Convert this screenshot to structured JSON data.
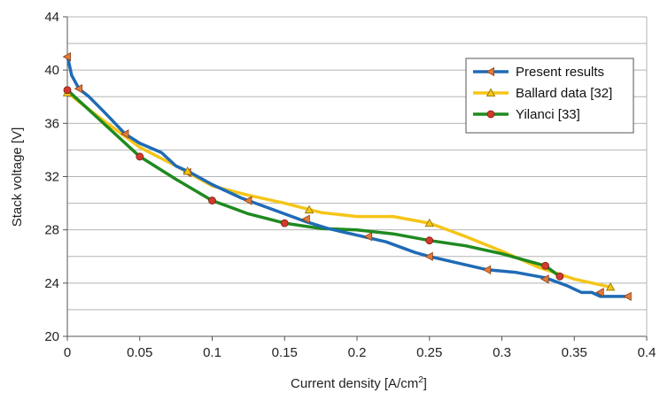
{
  "chart_data": {
    "type": "line",
    "title": "",
    "xlabel": "Current density [A/cm",
    "xlabel_superscript": "2",
    "xlabel_suffix": "]",
    "ylabel": "Stack voltage [V]",
    "xlim": [
      0,
      0.4
    ],
    "ylim": [
      20,
      44
    ],
    "x_ticks": [
      0,
      0.05,
      0.1,
      0.15,
      0.2,
      0.25,
      0.3,
      0.35,
      0.4
    ],
    "x_tick_labels": [
      "0",
      "0.05",
      "0.1",
      "0.15",
      "0.2",
      "0.25",
      "0.3",
      "0.35",
      "0.4"
    ],
    "y_ticks": [
      20,
      24,
      28,
      32,
      36,
      40,
      44
    ],
    "y_tick_labels": [
      "20",
      "24",
      "28",
      "32",
      "36",
      "40",
      "44"
    ],
    "grid": {
      "horizontal": true,
      "vertical": false,
      "step": 2
    },
    "legend_position": "top-right",
    "series": [
      {
        "name": "Present results",
        "color": "#1f6bb5",
        "marker": "left-triangle",
        "marker_color": "#e07b3c",
        "x": [
          0,
          0.001,
          0.003,
          0.005,
          0.008,
          0.015,
          0.025,
          0.04,
          0.05,
          0.065,
          0.075,
          0.085,
          0.1,
          0.12,
          0.15,
          0.165,
          0.18,
          0.2,
          0.22,
          0.24,
          0.25,
          0.27,
          0.29,
          0.31,
          0.33,
          0.345,
          0.355,
          0.362,
          0.368,
          0.375,
          0.387
        ],
        "y": [
          41,
          40.6,
          39.6,
          39.2,
          38.6,
          38,
          36.9,
          35.2,
          34.5,
          33.8,
          32.8,
          32.3,
          31.4,
          30.4,
          29.2,
          28.6,
          28.1,
          27.6,
          27.1,
          26.3,
          26,
          25.5,
          25,
          24.8,
          24.4,
          23.8,
          23.3,
          23.3,
          23,
          23,
          23
        ]
      },
      {
        "name": "Ballard data [32]",
        "color": "#f5c518",
        "marker": "triangle",
        "marker_color": "#f5c518",
        "x": [
          0,
          0.025,
          0.05,
          0.075,
          0.1,
          0.125,
          0.15,
          0.175,
          0.2,
          0.225,
          0.25,
          0.275,
          0.3,
          0.325,
          0.35,
          0.375
        ],
        "y": [
          38.3,
          36.2,
          34.2,
          32.8,
          31.3,
          30.6,
          30,
          29.3,
          29,
          29,
          28.5,
          27.5,
          26.4,
          25.2,
          24.3,
          23.7
        ]
      },
      {
        "name": "Yilanci [33]",
        "color": "#1f8a1f",
        "marker": "circle",
        "marker_color": "#d33a2c",
        "x": [
          0,
          0.025,
          0.05,
          0.075,
          0.1,
          0.125,
          0.15,
          0.175,
          0.2,
          0.225,
          0.25,
          0.275,
          0.3,
          0.33,
          0.34
        ],
        "y": [
          38.5,
          36,
          33.5,
          31.8,
          30.2,
          29.2,
          28.5,
          28.1,
          28,
          27.7,
          27.2,
          26.8,
          26.2,
          25.3,
          24.5
        ]
      }
    ],
    "markers": [
      {
        "series": 0,
        "x": [
          0,
          0.008,
          0.04,
          0.083,
          0.125,
          0.165,
          0.208,
          0.25,
          0.29,
          0.33,
          0.368,
          0.387
        ],
        "y": [
          41,
          38.6,
          35.2,
          32.3,
          30.2,
          28.8,
          27.5,
          26,
          25,
          24.3,
          23.3,
          23
        ]
      },
      {
        "series": 1,
        "x": [
          0,
          0.083,
          0.167,
          0.25,
          0.375
        ],
        "y": [
          38.3,
          32.4,
          29.5,
          28.5,
          23.7
        ]
      },
      {
        "series": 2,
        "x": [
          0,
          0.05,
          0.1,
          0.15,
          0.25,
          0.33,
          0.34
        ],
        "y": [
          38.5,
          33.5,
          30.2,
          28.5,
          27.2,
          25.3,
          24.5
        ]
      }
    ]
  }
}
